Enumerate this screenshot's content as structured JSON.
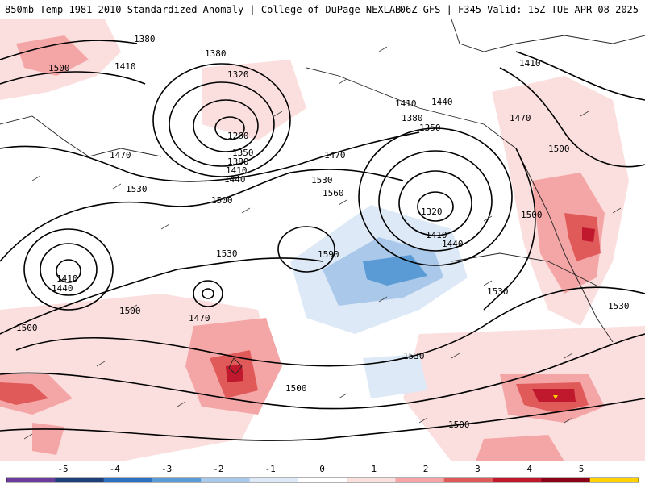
{
  "header": {
    "left_title": "850mb Temp 1981-2010 Standardized Anomaly | College of DuPage NEXLAB",
    "right_title": "06Z GFS | F345 Valid: 15Z TUE APR 08 2025"
  },
  "contour_labels": [
    "1380",
    "1410",
    "1380",
    "1320",
    "1260",
    "1350",
    "1380",
    "1410",
    "1440",
    "1470",
    "1530",
    "1500",
    "1410",
    "1440",
    "1410",
    "1470",
    "1380",
    "1350",
    "1320",
    "1410",
    "1440",
    "1470",
    "1500",
    "1500",
    "1530",
    "1560",
    "1590",
    "1530",
    "1530",
    "1500",
    "1410",
    "1440",
    "1470",
    "1500",
    "1500",
    "1530",
    "1500",
    "1530",
    "1500"
  ],
  "legend": {
    "ticks": [
      "-5",
      "-4",
      "-3",
      "-2",
      "-1",
      "0",
      "1",
      "2",
      "3",
      "4",
      "5"
    ],
    "colors": [
      "#6a3d9a",
      "#1f3f7a",
      "#2f6fbf",
      "#5b9bd5",
      "#a9c8ea",
      "#dde9f6",
      "#ffffff",
      "#fbdede",
      "#f4a6a6",
      "#e05a5a",
      "#c0182d",
      "#8b0016",
      "#ffd200"
    ]
  }
}
